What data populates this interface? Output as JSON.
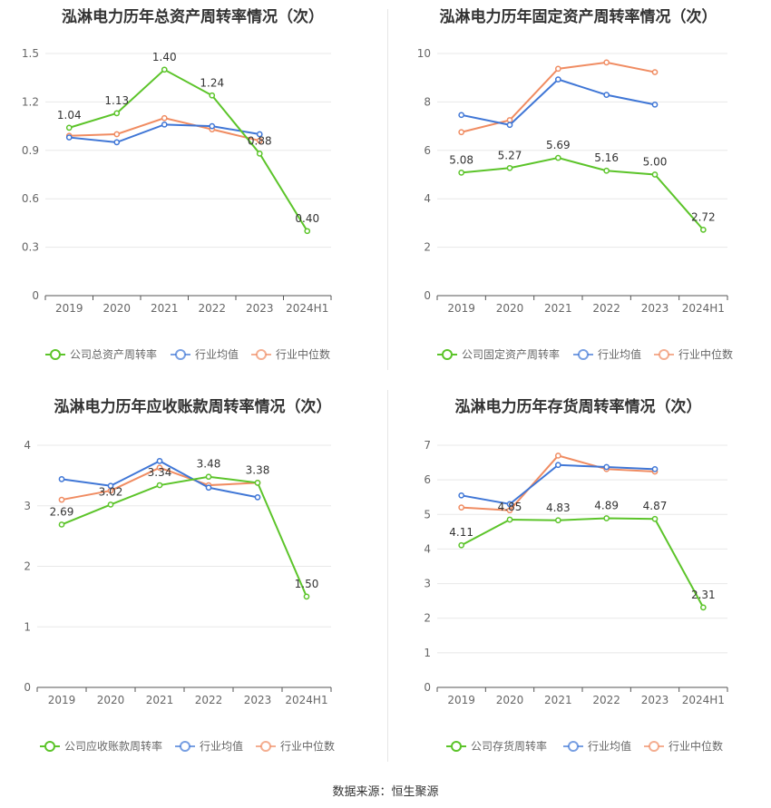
{
  "colors": {
    "company": "#5cc42a",
    "avg": "#3f76d6",
    "median": "#f08c62",
    "grid": "#e8e8e8",
    "axis": "#555555",
    "text": "#666666"
  },
  "legend_labels": {
    "avg": "行业均值",
    "median": "行业中位数"
  },
  "source": "数据来源：恒生聚源",
  "chart_data": [
    {
      "type": "line",
      "title": "泓淋电力历年总资产周转率情况（次）",
      "categories": [
        "2019",
        "2020",
        "2021",
        "2022",
        "2023",
        "2024H1"
      ],
      "ylim": [
        0,
        1.5
      ],
      "yticks": [
        "0",
        "0.3",
        "0.6",
        "0.9",
        "1.2",
        "1.5"
      ],
      "grid": true,
      "legend_position": "bottom",
      "series": [
        {
          "name": "公司总资产周转率",
          "role": "company",
          "values": [
            1.04,
            1.13,
            1.4,
            1.24,
            0.88,
            0.4
          ],
          "labels": [
            "1.04",
            "1.13",
            "1.40",
            "1.24",
            "0.88",
            "0.40"
          ]
        },
        {
          "name": "行业均值",
          "role": "avg",
          "values": [
            0.98,
            0.95,
            1.06,
            1.05,
            1.0,
            null
          ]
        },
        {
          "name": "行业中位数",
          "role": "median",
          "values": [
            0.99,
            1.0,
            1.1,
            1.03,
            0.96,
            null
          ]
        }
      ]
    },
    {
      "type": "line",
      "title": "泓淋电力历年固定资产周转率情况（次）",
      "categories": [
        "2019",
        "2020",
        "2021",
        "2022",
        "2023",
        "2024H1"
      ],
      "ylim": [
        0,
        10
      ],
      "yticks": [
        "0",
        "2",
        "4",
        "6",
        "8",
        "10"
      ],
      "grid": true,
      "legend_position": "bottom",
      "series": [
        {
          "name": "公司固定资产周转率",
          "role": "company",
          "values": [
            5.08,
            5.27,
            5.69,
            5.16,
            5.0,
            2.72
          ],
          "labels": [
            "5.08",
            "5.27",
            "5.69",
            "5.16",
            "5.00",
            "2.72"
          ]
        },
        {
          "name": "行业均值",
          "role": "avg",
          "values": [
            7.46,
            7.05,
            8.93,
            8.29,
            7.89,
            null
          ]
        },
        {
          "name": "行业中位数",
          "role": "median",
          "values": [
            6.75,
            7.25,
            9.37,
            9.63,
            9.23,
            null
          ]
        }
      ]
    },
    {
      "type": "line",
      "title": "泓淋电力历年应收账款周转率情况（次）",
      "categories": [
        "2019",
        "2020",
        "2021",
        "2022",
        "2023",
        "2024H1"
      ],
      "ylim": [
        0,
        4
      ],
      "yticks": [
        "0",
        "1",
        "2",
        "3",
        "4"
      ],
      "grid": true,
      "legend_position": "bottom",
      "series": [
        {
          "name": "公司应收账款周转率",
          "role": "company",
          "values": [
            2.69,
            3.02,
            3.34,
            3.48,
            3.38,
            1.5
          ],
          "labels": [
            "2.69",
            "3.02",
            "3.34",
            "3.48",
            "3.38",
            "1.50"
          ]
        },
        {
          "name": "行业均值",
          "role": "avg",
          "values": [
            3.44,
            3.33,
            3.74,
            3.3,
            3.14,
            null
          ]
        },
        {
          "name": "行业中位数",
          "role": "median",
          "values": [
            3.1,
            3.25,
            3.63,
            3.34,
            3.38,
            null
          ]
        }
      ]
    },
    {
      "type": "line",
      "title": "泓淋电力历年存货周转率情况（次）",
      "categories": [
        "2019",
        "2020",
        "2021",
        "2022",
        "2023",
        "2024H1"
      ],
      "ylim": [
        0,
        7
      ],
      "yticks": [
        "0",
        "1",
        "2",
        "3",
        "4",
        "5",
        "6",
        "7"
      ],
      "grid": true,
      "legend_position": "bottom",
      "series": [
        {
          "name": "公司存货周转率",
          "role": "company",
          "values": [
            4.11,
            4.85,
            4.83,
            4.89,
            4.87,
            2.31
          ],
          "labels": [
            "4.11",
            "4.85",
            "4.83",
            "4.89",
            "4.87",
            "2.31"
          ]
        },
        {
          "name": "行业均值",
          "role": "avg",
          "values": [
            5.55,
            5.3,
            6.43,
            6.37,
            6.31,
            null
          ]
        },
        {
          "name": "行业中位数",
          "role": "median",
          "values": [
            5.2,
            5.12,
            6.7,
            6.31,
            6.24,
            null
          ]
        }
      ]
    }
  ]
}
